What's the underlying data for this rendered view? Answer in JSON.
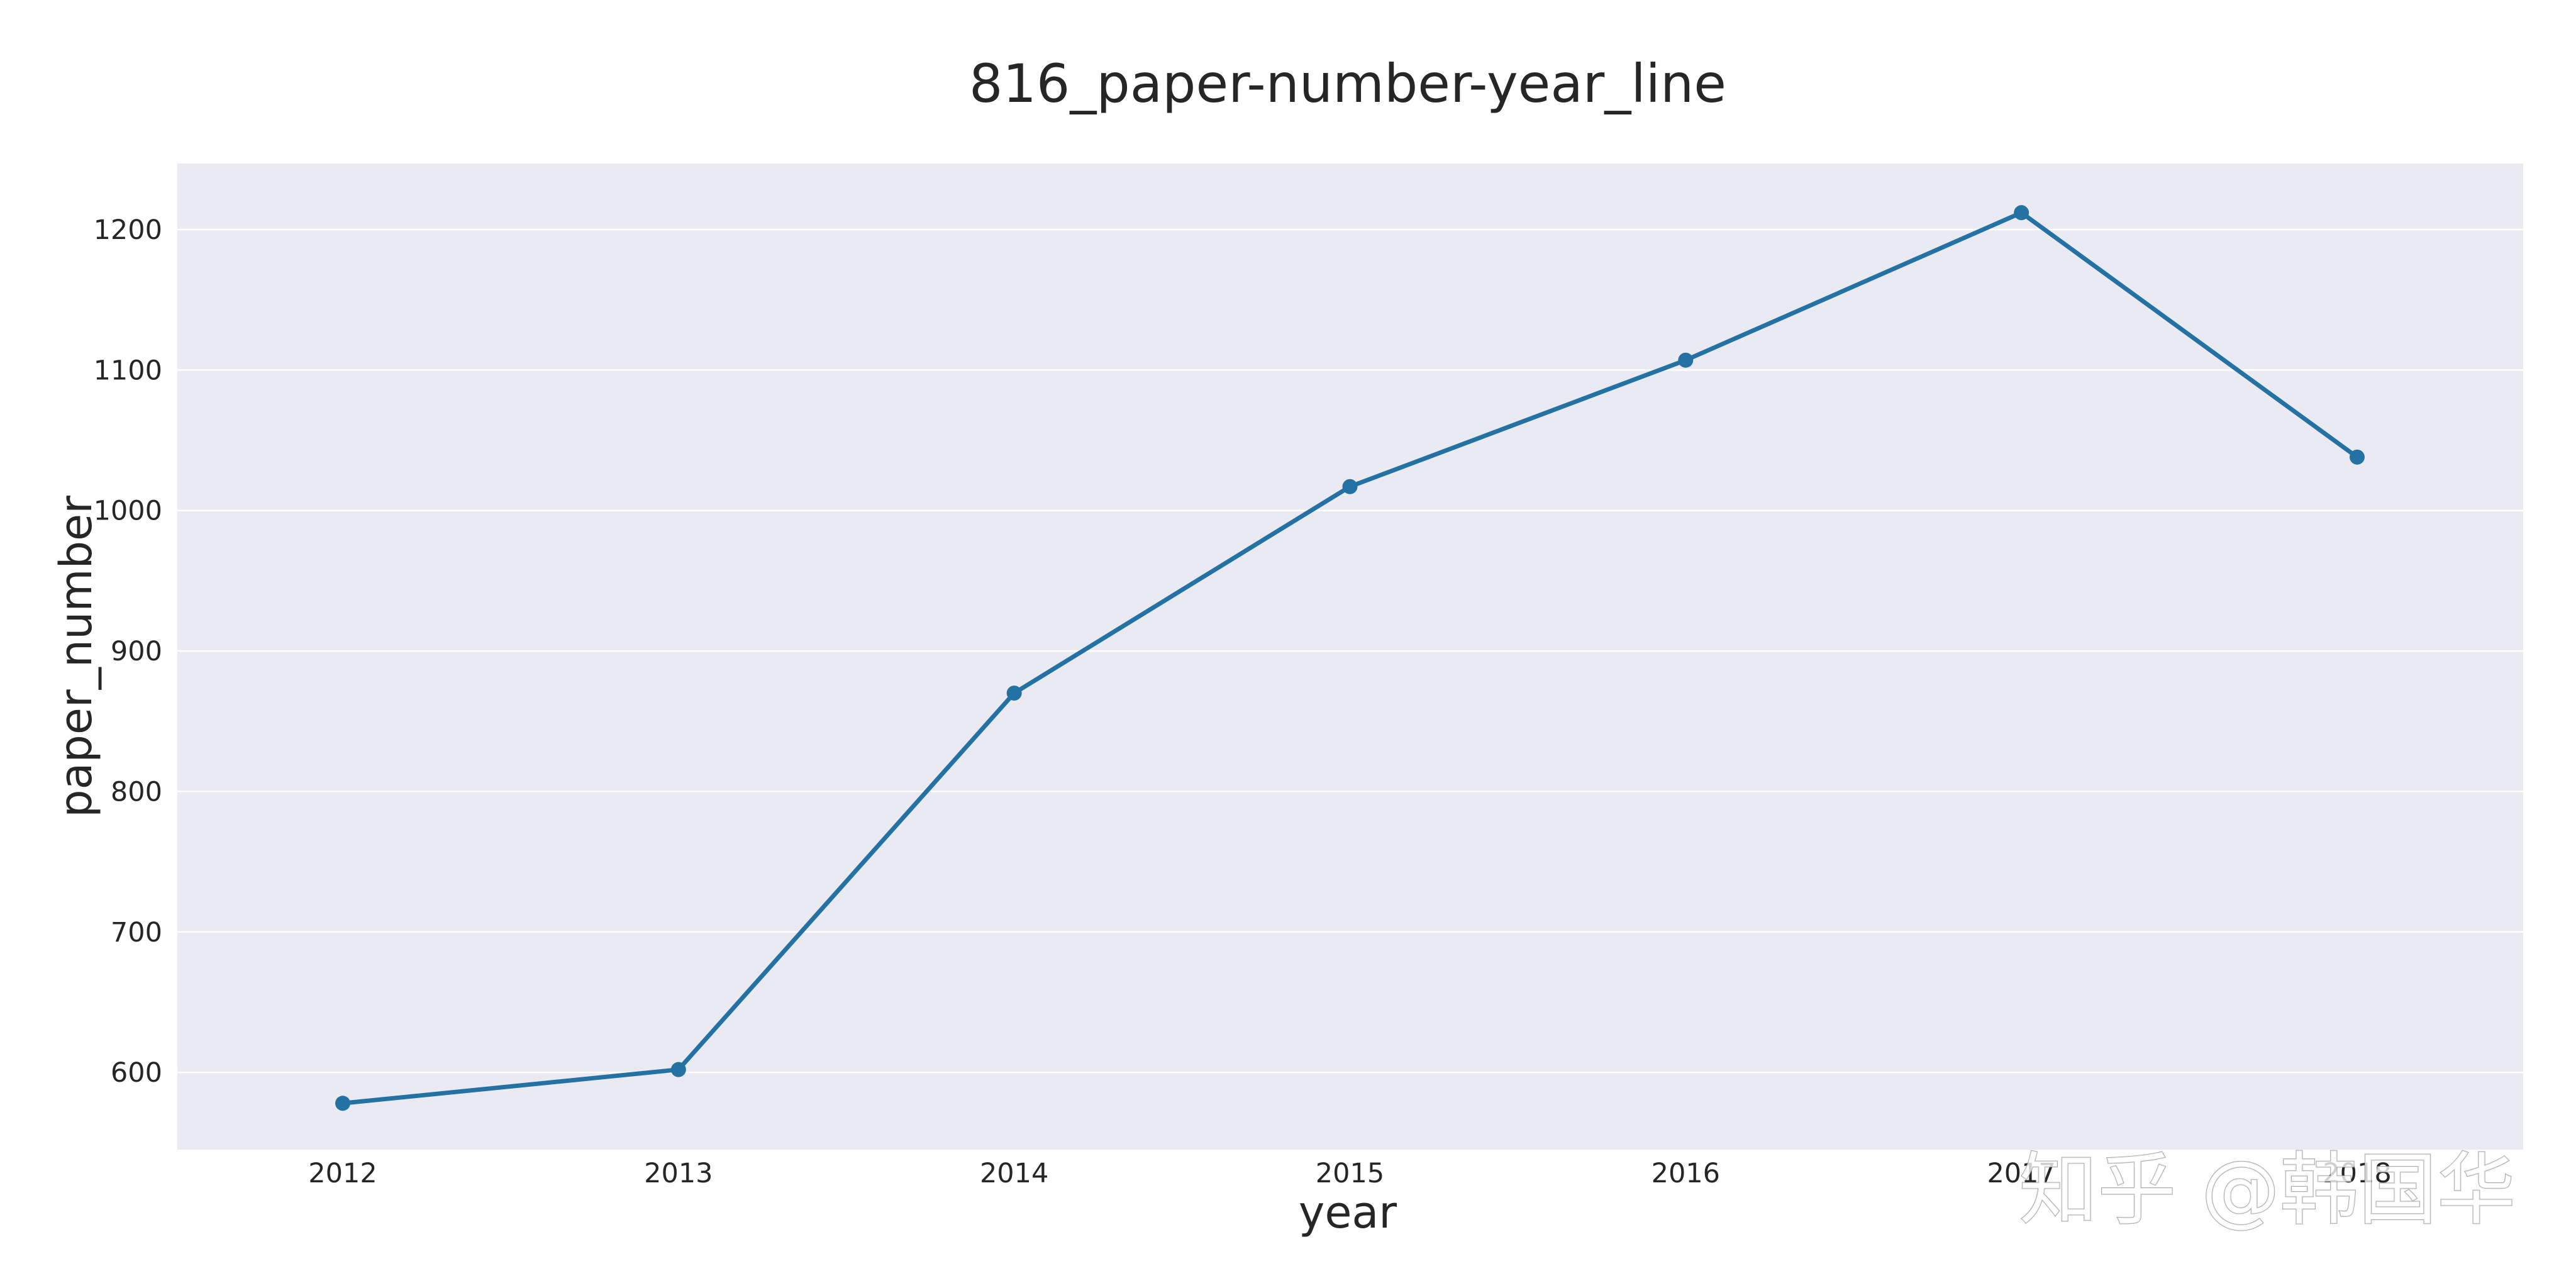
{
  "chart_data": {
    "type": "line",
    "title": "816_paper-number-year_line",
    "xlabel": "year",
    "ylabel": "paper_number",
    "x": [
      "2012",
      "2013",
      "2014",
      "2015",
      "2016",
      "2017",
      "2018"
    ],
    "series": [
      {
        "values": [
          578,
          602,
          870,
          1017,
          1107,
          1212,
          1038
        ]
      }
    ],
    "ylim": [
      545,
      1247
    ],
    "yticks": [
      600,
      700,
      800,
      900,
      1000,
      1100,
      1200
    ],
    "grid": true,
    "legend": "none",
    "colors": {
      "line": "#2471a3",
      "plot_background": "#eaeaf2",
      "grid": "#ffffff",
      "text": "#262626"
    }
  },
  "watermark": "知乎 @韩国华"
}
